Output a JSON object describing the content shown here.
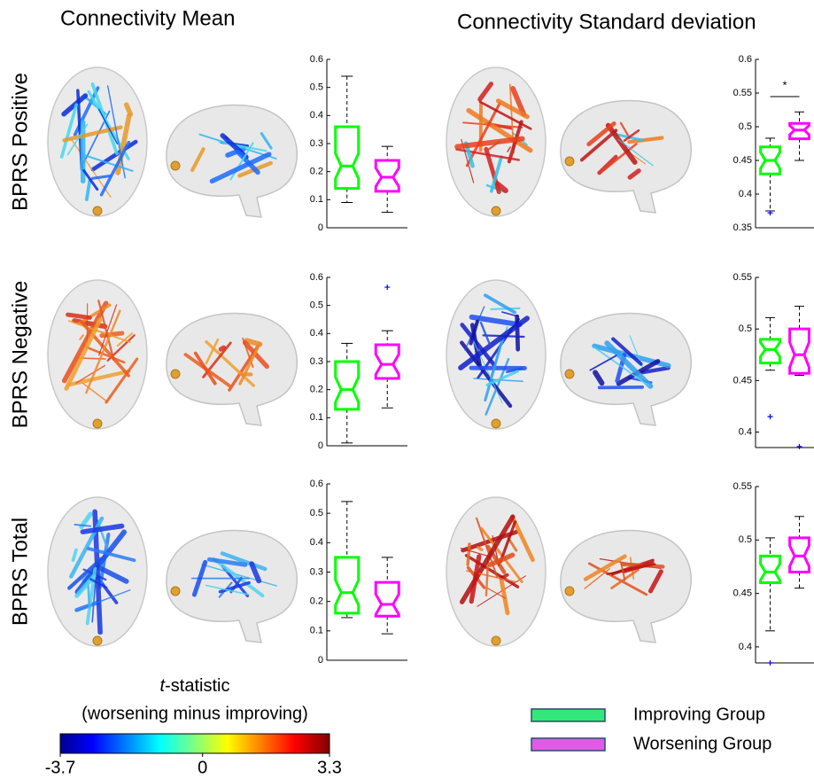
{
  "columns": [
    "Connectivity Mean",
    "Connectivity Standard deviation"
  ],
  "rows": [
    "BPRS Positive",
    "BPRS Negative",
    "BPRS Total"
  ],
  "colorbar": {
    "symbol": "t",
    "suffix": "-statistic",
    "subtitle": "(worsening minus improving)",
    "lim": [
      -3.7,
      3.3
    ],
    "ticks": [
      -3.7,
      0,
      3.3
    ]
  },
  "legend": [
    {
      "name": "Improving Group",
      "color": "#00ff00",
      "swatch": "#33e87a"
    },
    {
      "name": "Worsening Group",
      "color": "#ff00ff",
      "swatch": "#e05ae6"
    }
  ],
  "chart_data": [
    {
      "type": "box",
      "ylim": [
        0,
        0.6
      ],
      "yticks": [
        0,
        0.1,
        0.2,
        0.3,
        0.4,
        0.5,
        0.6
      ],
      "boxes": [
        {
          "low": 0.09,
          "q1": 0.14,
          "median": 0.22,
          "q3": 0.36,
          "high": 0.54,
          "outliers": []
        },
        {
          "low": 0.055,
          "q1": 0.13,
          "median": 0.18,
          "q3": 0.24,
          "high": 0.29,
          "outliers": []
        }
      ]
    },
    {
      "type": "box",
      "ylim": [
        0.35,
        0.6
      ],
      "yticks": [
        0.35,
        0.4,
        0.45,
        0.5,
        0.55,
        0.6
      ],
      "annotation": "*",
      "boxes": [
        {
          "low": 0.375,
          "q1": 0.43,
          "median": 0.45,
          "q3": 0.47,
          "high": 0.483,
          "outliers": [
            0.372
          ]
        },
        {
          "low": 0.45,
          "q1": 0.482,
          "median": 0.495,
          "q3": 0.505,
          "high": 0.522,
          "outliers": []
        }
      ]
    },
    {
      "type": "box",
      "ylim": [
        0,
        0.6
      ],
      "yticks": [
        0,
        0.1,
        0.2,
        0.3,
        0.4,
        0.5,
        0.6
      ],
      "boxes": [
        {
          "low": 0.01,
          "q1": 0.13,
          "median": 0.2,
          "q3": 0.3,
          "high": 0.365,
          "outliers": []
        },
        {
          "low": 0.135,
          "q1": 0.24,
          "median": 0.29,
          "q3": 0.36,
          "high": 0.41,
          "outliers": [
            0.565
          ]
        }
      ]
    },
    {
      "type": "box",
      "ylim": [
        0.385,
        0.55
      ],
      "yticks": [
        0.4,
        0.45,
        0.5,
        0.55
      ],
      "boxes": [
        {
          "low": 0.46,
          "q1": 0.467,
          "median": 0.48,
          "q3": 0.49,
          "high": 0.511,
          "outliers": [
            0.415
          ]
        },
        {
          "low": 0.455,
          "q1": 0.457,
          "median": 0.475,
          "q3": 0.5,
          "high": 0.522,
          "outliers": [
            0.386
          ]
        }
      ]
    },
    {
      "type": "box",
      "ylim": [
        0,
        0.6
      ],
      "yticks": [
        0,
        0.1,
        0.2,
        0.3,
        0.4,
        0.5,
        0.6
      ],
      "boxes": [
        {
          "low": 0.145,
          "q1": 0.16,
          "median": 0.23,
          "q3": 0.35,
          "high": 0.54,
          "outliers": []
        },
        {
          "low": 0.09,
          "q1": 0.15,
          "median": 0.19,
          "q3": 0.265,
          "high": 0.35,
          "outliers": []
        }
      ]
    },
    {
      "type": "box",
      "ylim": [
        0.385,
        0.55
      ],
      "yticks": [
        0.4,
        0.45,
        0.5,
        0.55
      ],
      "boxes": [
        {
          "low": 0.415,
          "q1": 0.46,
          "median": 0.47,
          "q3": 0.485,
          "high": 0.502,
          "outliers": [
            0.385
          ]
        },
        {
          "low": 0.455,
          "q1": 0.47,
          "median": 0.485,
          "q3": 0.502,
          "high": 0.522,
          "outliers": []
        }
      ]
    }
  ]
}
